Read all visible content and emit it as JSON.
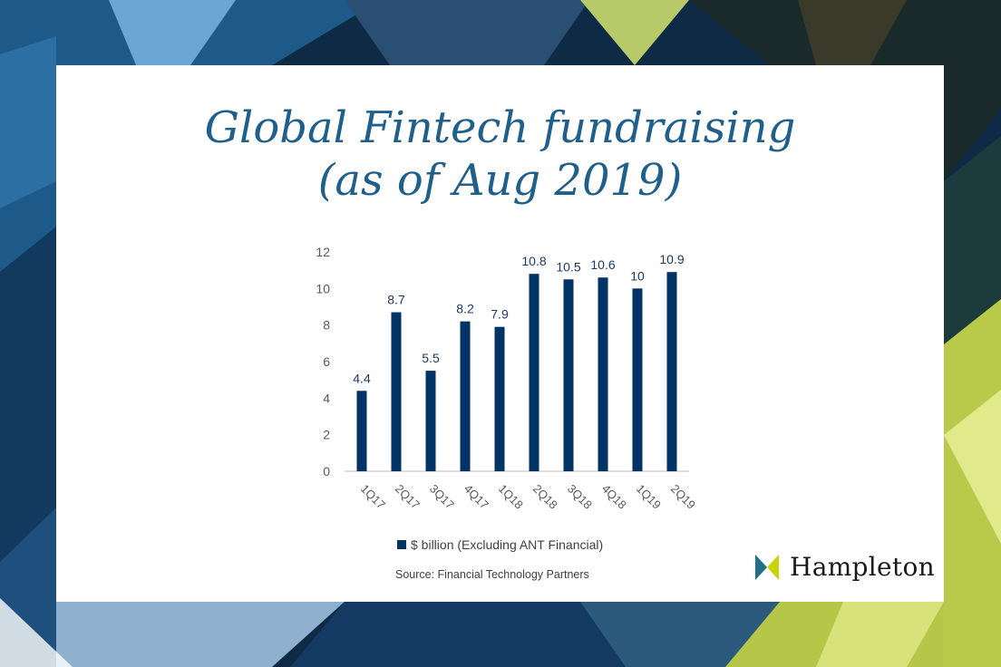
{
  "title": {
    "line1": "Global Fintech fundraising",
    "line2": "(as of Aug 2019)"
  },
  "colors": {
    "title": "#1f5f8b",
    "bar": "#003366",
    "axis_text": "#595959",
    "label_text": "#1f3864",
    "brand_teal": "#1f6f8b",
    "brand_lime": "#c8d400"
  },
  "chart_data": {
    "type": "bar",
    "categories": [
      "1Q17",
      "2Q17",
      "3Q17",
      "4Q17",
      "1Q18",
      "2Q18",
      "3Q18",
      "4Q18",
      "1Q19",
      "2Q19"
    ],
    "series": [
      {
        "name": "$ billion (Excluding ANT Financial)",
        "values": [
          4.4,
          8.7,
          5.5,
          8.2,
          7.9,
          10.8,
          10.5,
          10.6,
          10,
          10.9
        ]
      }
    ],
    "value_labels": [
      "4.4",
      "8.7",
      "5.5",
      "8.2",
      "7.9",
      "10.8",
      "10.5",
      "10.6",
      "10",
      "10.9"
    ],
    "yticks": [
      "0",
      "2",
      "4",
      "6",
      "8",
      "10",
      "12"
    ],
    "ylim": [
      0,
      12
    ],
    "grid": false,
    "legend_position": "bottom"
  },
  "source": "Source: Financial Technology Partners",
  "brand": {
    "name": "Hampleton",
    "logo_icon": "hampleton-logo-icon"
  }
}
